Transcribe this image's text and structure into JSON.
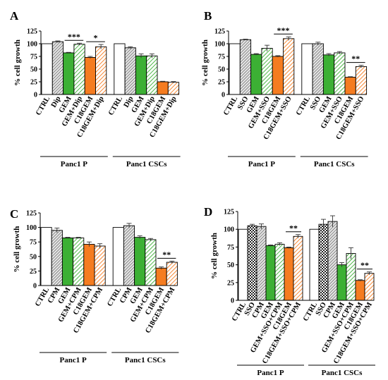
{
  "figure": {
    "panel_letters": [
      "A",
      "B",
      "C",
      "D"
    ],
    "ylabel": "% cell growth",
    "y_ticks": [
      "0",
      "25",
      "50",
      "75",
      "100",
      "125"
    ]
  },
  "colors": {
    "white": "#ffffff",
    "gray": "#bfbfbf",
    "green": "#3cb034",
    "orange": "#f57c20"
  },
  "chart_data": [
    {
      "panel": "A",
      "type": "bar",
      "ylabel": "% cell growth",
      "ylim": [
        0,
        125
      ],
      "groups": [
        {
          "label": "Panc1 P",
          "bars": [
            {
              "category": "CTRL",
              "value": 100,
              "error": 0,
              "style": "white"
            },
            {
              "category": "Dip",
              "value": 104,
              "error": 1.5,
              "style": "gray-hatch"
            },
            {
              "category": "GEM",
              "value": 82,
              "error": 1,
              "style": "green"
            },
            {
              "category": "GEM+Dip",
              "value": 99,
              "error": 2,
              "style": "green-hatch"
            },
            {
              "category": "C18GEM",
              "value": 73,
              "error": 2,
              "style": "orange"
            },
            {
              "category": "C18GEM+Dip",
              "value": 94,
              "error": 4.5,
              "style": "orange-hatch"
            }
          ],
          "significance": [
            {
              "label": "***",
              "bars": [
                2,
                3
              ]
            },
            {
              "label": "*",
              "bars": [
                4,
                5
              ]
            }
          ]
        },
        {
          "label": "Panc1 CSCs",
          "bars": [
            {
              "category": "CTRL",
              "value": 100,
              "error": 0,
              "style": "white"
            },
            {
              "category": "Dip",
              "value": 92,
              "error": 2,
              "style": "gray-hatch"
            },
            {
              "category": "GEM",
              "value": 76,
              "error": 4,
              "style": "green"
            },
            {
              "category": "GEM+Dip",
              "value": 76,
              "error": 4,
              "style": "green-hatch"
            },
            {
              "category": "C18GEM",
              "value": 25,
              "error": 1,
              "style": "orange"
            },
            {
              "category": "C18GEM+Dip",
              "value": 24,
              "error": 1.5,
              "style": "orange-hatch"
            }
          ],
          "significance": []
        }
      ]
    },
    {
      "panel": "B",
      "type": "bar",
      "ylabel": "% cell growth",
      "ylim": [
        0,
        125
      ],
      "groups": [
        {
          "label": "Panc1 P",
          "bars": [
            {
              "category": "CTRL",
              "value": 100,
              "error": 0,
              "style": "white"
            },
            {
              "category": "SSO",
              "value": 108,
              "error": 1,
              "style": "gray-hatch"
            },
            {
              "category": "GEM",
              "value": 79,
              "error": 1.5,
              "style": "green"
            },
            {
              "category": "GEM+SSO",
              "value": 91,
              "error": 6,
              "style": "green-hatch"
            },
            {
              "category": "C18GEM",
              "value": 75,
              "error": 1.5,
              "style": "orange"
            },
            {
              "category": "C18GEM+SSO",
              "value": 110,
              "error": 3.5,
              "style": "orange-hatch"
            }
          ],
          "significance": [
            {
              "label": "***",
              "bars": [
                4,
                5
              ]
            }
          ]
        },
        {
          "label": "Panc1 CSCs",
          "bars": [
            {
              "category": "CTRL",
              "value": 100,
              "error": 0,
              "style": "white"
            },
            {
              "category": "SSO",
              "value": 100,
              "error": 3,
              "style": "gray-hatch"
            },
            {
              "category": "GEM",
              "value": 78,
              "error": 2.5,
              "style": "green"
            },
            {
              "category": "GEM+SSO",
              "value": 82,
              "error": 2.5,
              "style": "green-hatch"
            },
            {
              "category": "C18GEM",
              "value": 34,
              "error": 1,
              "style": "orange"
            },
            {
              "category": "C18GEM+SSO",
              "value": 55,
              "error": 2.5,
              "style": "orange-hatch"
            }
          ],
          "significance": [
            {
              "label": "**",
              "bars": [
                4,
                5
              ]
            }
          ]
        }
      ]
    },
    {
      "panel": "C",
      "type": "bar",
      "ylabel": "% cell growth",
      "ylim": [
        0,
        125
      ],
      "groups": [
        {
          "label": "Panc1 P",
          "bars": [
            {
              "category": "CTRL",
              "value": 100,
              "error": 0,
              "style": "white"
            },
            {
              "category": "CPM",
              "value": 95,
              "error": 4,
              "style": "gray-hatch"
            },
            {
              "category": "GEM",
              "value": 82,
              "error": 1,
              "style": "green"
            },
            {
              "category": "GEM+CPM",
              "value": 82,
              "error": 1,
              "style": "green-hatch"
            },
            {
              "category": "C18GEM",
              "value": 71,
              "error": 4,
              "style": "orange"
            },
            {
              "category": "C18GEM+CPM",
              "value": 68,
              "error": 4,
              "style": "orange-hatch"
            }
          ],
          "significance": []
        },
        {
          "label": "Panc1 CSCs",
          "bars": [
            {
              "category": "CTRL",
              "value": 100,
              "error": 0,
              "style": "white"
            },
            {
              "category": "CPM",
              "value": 103,
              "error": 4,
              "style": "gray-hatch"
            },
            {
              "category": "GEM",
              "value": 83,
              "error": 2.5,
              "style": "green"
            },
            {
              "category": "GEM+CPM",
              "value": 79,
              "error": 2,
              "style": "green-hatch"
            },
            {
              "category": "C18GEM",
              "value": 30,
              "error": 2,
              "style": "orange"
            },
            {
              "category": "C18GEM+CPM",
              "value": 40,
              "error": 2,
              "style": "orange-hatch"
            }
          ],
          "significance": [
            {
              "label": "**",
              "bars": [
                4,
                5
              ]
            }
          ]
        }
      ]
    },
    {
      "panel": "D",
      "type": "bar",
      "ylabel": "% cell growth",
      "ylim": [
        0,
        125
      ],
      "groups": [
        {
          "label": "Panc1 P",
          "bars": [
            {
              "category": "CTRL",
              "value": 100,
              "error": 0,
              "style": "white"
            },
            {
              "category": "SSO",
              "value": 105,
              "error": 2,
              "style": "check"
            },
            {
              "category": "CPM",
              "value": 104,
              "error": 3.5,
              "style": "gray-hatch"
            },
            {
              "category": "GEM",
              "value": 77,
              "error": 1,
              "style": "green"
            },
            {
              "category": "GEM+SSO+CPM",
              "value": 79,
              "error": 2,
              "style": "green-hatch"
            },
            {
              "category": "C18GEM",
              "value": 74,
              "error": 1,
              "style": "orange"
            },
            {
              "category": "C18GEM+SSO+CPM",
              "value": 90,
              "error": 2.5,
              "style": "orange-hatch"
            }
          ],
          "significance": [
            {
              "label": "**",
              "bars": [
                5,
                6
              ]
            }
          ]
        },
        {
          "label": "Panc1 CSCs",
          "bars": [
            {
              "category": "CTRL",
              "value": 100,
              "error": 0,
              "style": "white"
            },
            {
              "category": "SSO",
              "value": 107,
              "error": 7,
              "style": "check"
            },
            {
              "category": "CPM",
              "value": 111,
              "error": 8,
              "style": "gray-hatch"
            },
            {
              "category": "GEM",
              "value": 50,
              "error": 3,
              "style": "green"
            },
            {
              "category": "GEM+SSO+CPM",
              "value": 66,
              "error": 8,
              "style": "green-hatch"
            },
            {
              "category": "C18GEM",
              "value": 28,
              "error": 1,
              "style": "orange"
            },
            {
              "category": "C18GEM+SSO+CPM",
              "value": 38,
              "error": 2,
              "style": "orange-hatch"
            }
          ],
          "significance": [
            {
              "label": "**",
              "bars": [
                5,
                6
              ]
            }
          ]
        }
      ]
    }
  ]
}
